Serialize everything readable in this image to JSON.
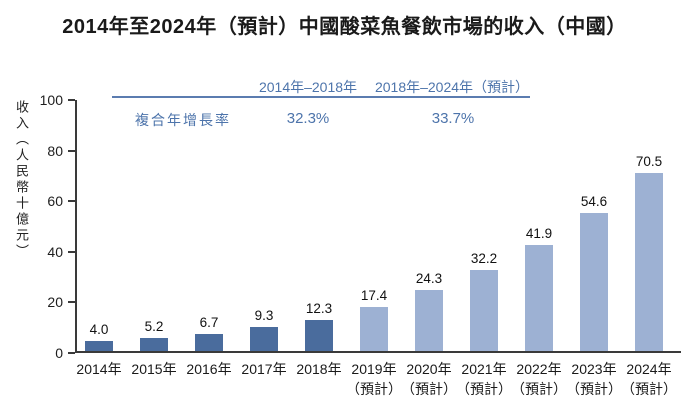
{
  "title": "2014年至2024年（預計）中國酸菜魚餐飲市場的收入（中國）",
  "cagr_table": {
    "row_label": "複合年增長率",
    "period_1": "2014年–2018年",
    "period_2": "2018年–2024年（預計）",
    "value_1": "32.3%",
    "value_2": "33.7%",
    "text_color": "#4d74ab",
    "rule_color": "#5b7cb0"
  },
  "chart_data": {
    "type": "bar",
    "title": "2014年至2024年（預計）中國酸菜魚餐飲市場的收入（中國）",
    "ylabel": "收入（人民幣十億元）",
    "xlabel": "",
    "ylim": [
      0,
      100
    ],
    "yticks": [
      0,
      20,
      40,
      60,
      80,
      100
    ],
    "grid": false,
    "legend": "none",
    "categories": [
      "2014年",
      "2015年",
      "2016年",
      "2017年",
      "2018年",
      "2019年",
      "2020年",
      "2021年",
      "2022年",
      "2023年",
      "2024年"
    ],
    "sublabels": [
      "",
      "",
      "",
      "",
      "",
      "（預計）",
      "（預計）",
      "（預計）",
      "（預計）",
      "（預計）",
      "（預計）"
    ],
    "values": [
      4.0,
      5.2,
      6.7,
      9.3,
      12.3,
      17.4,
      24.3,
      32.2,
      41.9,
      54.6,
      70.5
    ],
    "value_labels": [
      "4.0",
      "5.2",
      "6.7",
      "9.3",
      "12.3",
      "17.4",
      "24.3",
      "32.2",
      "41.9",
      "54.6",
      "70.5"
    ],
    "forecast_start_index": 5,
    "colors": {
      "actual": "#4a6c9d",
      "forecast": "#9db1d3",
      "axis": "#3a3a3a"
    }
  }
}
